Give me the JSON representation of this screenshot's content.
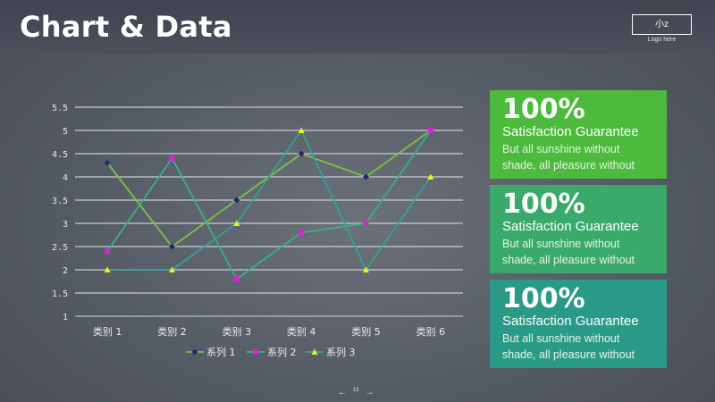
{
  "header": {
    "title": "Chart & Data",
    "logo_text": "小z",
    "logo_caption": "Logo here"
  },
  "chart_data": {
    "type": "line",
    "categories": [
      "类别 1",
      "类别 2",
      "类别 3",
      "类别 4",
      "类别 5",
      "类别 6"
    ],
    "series": [
      {
        "name": "系列 1",
        "values": [
          4.3,
          2.5,
          3.5,
          4.5,
          4.0,
          5.0
        ],
        "color": "#7dc243",
        "marker": "diamond",
        "marker_color": "#1a2a7a"
      },
      {
        "name": "系列 2",
        "values": [
          2.4,
          4.4,
          1.8,
          2.8,
          3.0,
          5.0
        ],
        "color": "#35b389",
        "marker": "square",
        "marker_color": "#e020d8"
      },
      {
        "name": "系列 3",
        "values": [
          2.0,
          2.0,
          3.0,
          5.0,
          2.0,
          4.0
        ],
        "color": "#2fa59a",
        "marker": "triangle",
        "marker_color": "#f2f21a"
      }
    ],
    "yticks": [
      "1",
      "1.5",
      "2",
      "2.5",
      "3",
      "3.5",
      "4",
      "4.5",
      "5",
      "5.5"
    ],
    "ylim": [
      1,
      5.5
    ],
    "grid": true,
    "legend": "bottom"
  },
  "cards": [
    {
      "big": "100%",
      "head": "Satisfaction Guarantee",
      "line1": "But all sunshine without",
      "line2": "shade, all pleasure without",
      "color": "#4cba3d"
    },
    {
      "big": "100%",
      "head": "Satisfaction Guarantee",
      "line1": "But all sunshine without",
      "line2": "shade, all pleasure without",
      "color": "#3aaa6c"
    },
    {
      "big": "100%",
      "head": "Satisfaction Guarantee",
      "line1": "But all sunshine without",
      "line2": "shade, all pleasure without",
      "color": "#2a9a88"
    }
  ],
  "footer": {
    "prev_arrow": "←",
    "page_number": "13",
    "next_arrow": "→"
  }
}
